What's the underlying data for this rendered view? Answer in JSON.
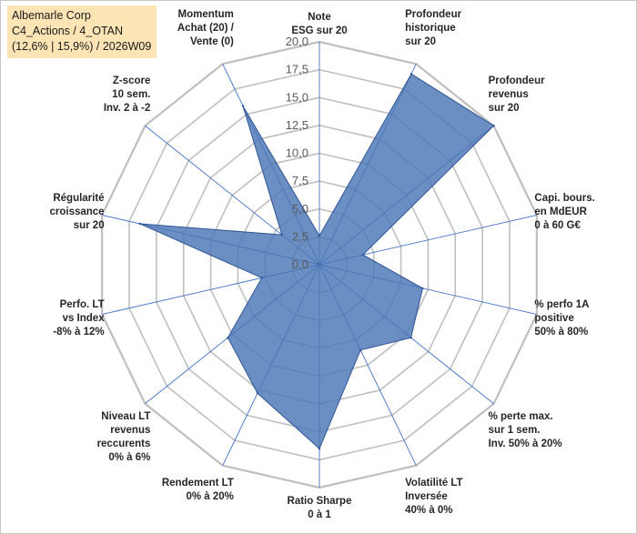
{
  "header": {
    "lines": [
      "Albemarle Corp",
      "C4_Actions / 4_OTAN",
      "(12,6% | 15,9%) / 2026W09"
    ]
  },
  "colors": {
    "fill": "#4a76b4",
    "fill_opacity": 0.82,
    "stroke": "#2f5597",
    "grid": "#bfbfbf",
    "spoke": "#4472c4"
  },
  "chart_data": {
    "type": "radar",
    "rmin": 0,
    "rmax": 20,
    "tick_step": 2.5,
    "ticks": [
      "0,0",
      "2,5",
      "5,0",
      "7,5",
      "10,0",
      "12,5",
      "15,0",
      "17,5",
      "20,0"
    ],
    "grid": true,
    "legend": "none",
    "axes": [
      {
        "label": [
          "Note",
          "ESG sur 20"
        ],
        "value": 2.6
      },
      {
        "label": [
          "Profondeur",
          "historique",
          "sur 20"
        ],
        "value": 19.0
      },
      {
        "label": [
          "Profondeur",
          "revenus",
          "sur 20"
        ],
        "value": 20.0
      },
      {
        "label": [
          "Capi. bours.",
          "en MdEUR",
          "0 à 60 G€"
        ],
        "value": 4.0
      },
      {
        "label": [
          "% perfo 1A",
          "positive",
          "50% à 80%"
        ],
        "value": 9.5
      },
      {
        "label": [
          "% perte max.",
          "sur 1 sem.",
          "Inv. 50% à 20%"
        ],
        "value": 10.5
      },
      {
        "label": [
          "Volatilité LT",
          "Inversée",
          "40% à 0%"
        ],
        "value": 8.5
      },
      {
        "label": [
          "Ratio Sharpe",
          "0 à 1"
        ],
        "value": 16.5
      },
      {
        "label": [
          "Rendement LT",
          "0% à 20%"
        ],
        "value": 12.8
      },
      {
        "label": [
          "Niveau LT",
          "revenus",
          "reccurents",
          "0% à 6%"
        ],
        "value": 10.5
      },
      {
        "label": [
          "Perfo. LT",
          "vs Index",
          "-8% à 12%"
        ],
        "value": 5.3
      },
      {
        "label": [
          "Régularité",
          "croissance",
          "sur 20"
        ],
        "value": 16.5
      },
      {
        "label": [
          "Z-score",
          "10 sem.",
          "Inv. 2 à -2"
        ],
        "value": 4.3
      },
      {
        "label": [
          "Momentum",
          "Achat (20) /",
          "Vente (0)"
        ],
        "value": 15.8
      }
    ]
  }
}
